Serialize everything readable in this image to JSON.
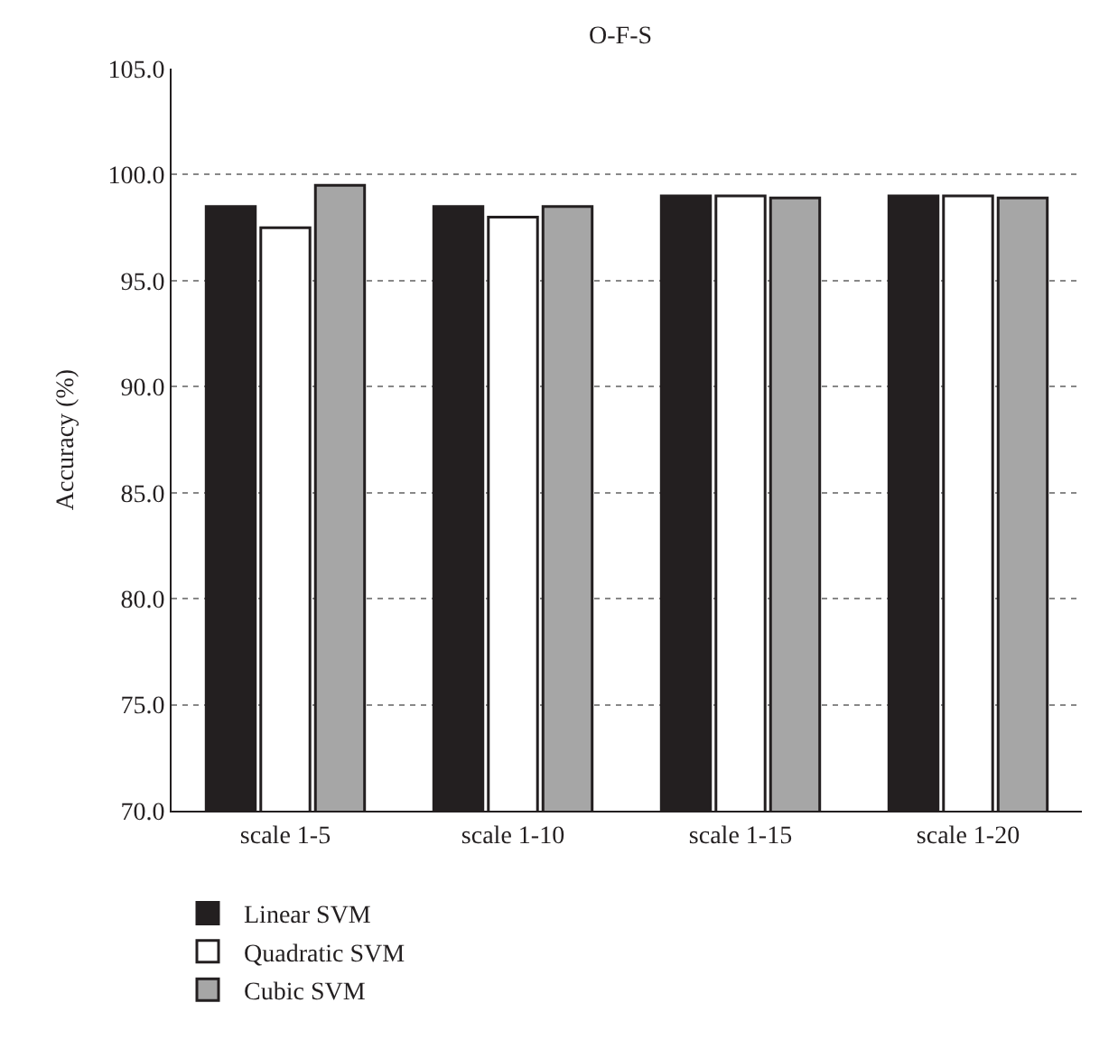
{
  "chart_data": {
    "type": "bar",
    "title": "O-F-S",
    "ylabel": "Accuracy (%)",
    "categories": [
      "scale 1-5",
      "scale 1-10",
      "scale 1-15",
      "scale 1-20"
    ],
    "series": [
      {
        "name": "Linear SVM",
        "color": "#231f20",
        "values": [
          98.5,
          98.5,
          99.0,
          99.0
        ]
      },
      {
        "name": "Quadratic SVM",
        "color": "#ffffff",
        "values": [
          97.5,
          98.0,
          99.0,
          99.0
        ]
      },
      {
        "name": "Cubic SVM",
        "color": "#a6a6a6",
        "values": [
          99.5,
          98.5,
          98.9,
          98.9
        ]
      }
    ],
    "ylim": [
      70,
      105
    ],
    "yticks": [
      {
        "value": 70,
        "label": "70.0"
      },
      {
        "value": 75,
        "label": "75.0"
      },
      {
        "value": 80,
        "label": "80.0"
      },
      {
        "value": 85,
        "label": "85.0"
      },
      {
        "value": 90,
        "label": "90.0"
      },
      {
        "value": 95,
        "label": "95.0"
      },
      {
        "value": 100,
        "label": "100.0"
      },
      {
        "value": 105,
        "label": "105.0"
      }
    ],
    "grid": "y",
    "legend": "bottom left"
  }
}
